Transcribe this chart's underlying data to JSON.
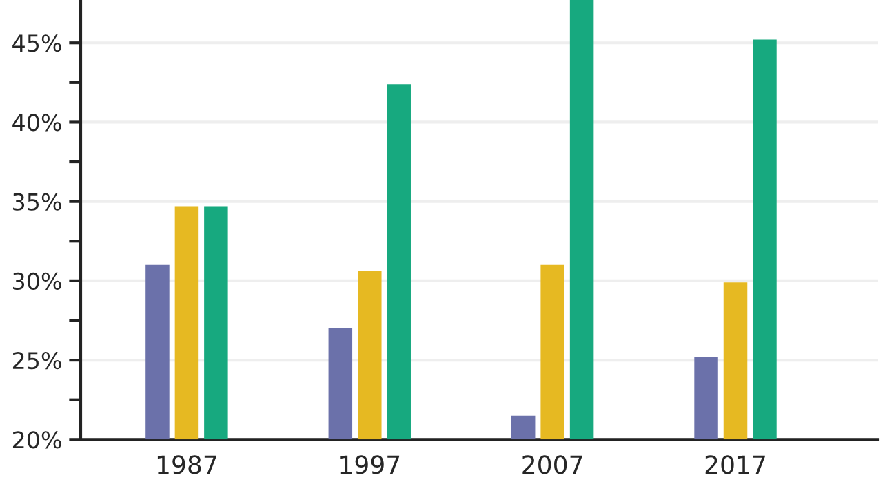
{
  "chart_data": {
    "type": "bar",
    "categories": [
      "1987",
      "1997",
      "2007",
      "2017"
    ],
    "series": [
      {
        "color": "#6b71aa",
        "values": [
          31.0,
          27.0,
          21.5,
          25.2
        ]
      },
      {
        "color": "#e6b922",
        "values": [
          34.7,
          30.6,
          31.0,
          29.9
        ]
      },
      {
        "color": "#17a97f",
        "values": [
          34.7,
          42.4,
          47.7,
          45.2
        ]
      }
    ],
    "ylim": [
      20,
      47.7
    ],
    "yticks": [
      {
        "value": 20,
        "label": "20%"
      },
      {
        "value": 22.5,
        "label": null
      },
      {
        "value": 25,
        "label": "25%"
      },
      {
        "value": 27.5,
        "label": null
      },
      {
        "value": 30,
        "label": "30%"
      },
      {
        "value": 32.5,
        "label": null
      },
      {
        "value": 35,
        "label": "35%"
      },
      {
        "value": 37.5,
        "label": null
      },
      {
        "value": 40,
        "label": "40%"
      },
      {
        "value": 42.5,
        "label": null
      },
      {
        "value": 45,
        "label": "45%"
      }
    ],
    "grid": "y",
    "legend": false
  }
}
